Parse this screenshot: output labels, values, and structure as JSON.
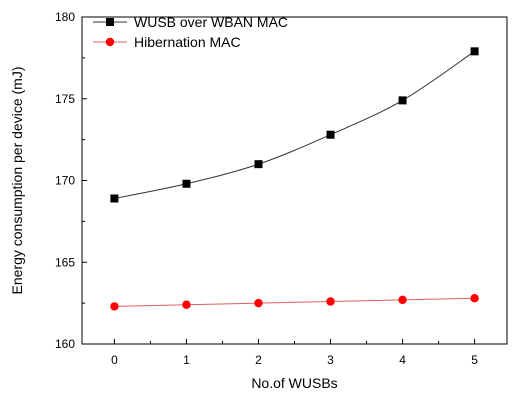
{
  "chart_data": {
    "type": "line",
    "xlabel": "No.of WUSBs",
    "ylabel": "Energy consumption per device (mJ)",
    "x": [
      0,
      1,
      2,
      3,
      4,
      5
    ],
    "xlim": [
      -0.45,
      5.45
    ],
    "ylim": [
      160,
      180
    ],
    "xticks": [
      0,
      1,
      2,
      3,
      4,
      5
    ],
    "yticks": [
      160,
      165,
      170,
      175,
      180
    ],
    "grid": false,
    "legend_position": "top-left",
    "series": [
      {
        "name": "WUSB over WBAN MAC",
        "values": [
          168.9,
          169.8,
          171.0,
          172.8,
          174.9,
          177.9
        ],
        "color": "#000000",
        "marker": "square"
      },
      {
        "name": "Hibernation MAC",
        "values": [
          162.3,
          162.4,
          162.5,
          162.6,
          162.7,
          162.8
        ],
        "color": "#ff0000",
        "marker": "circle"
      }
    ]
  }
}
